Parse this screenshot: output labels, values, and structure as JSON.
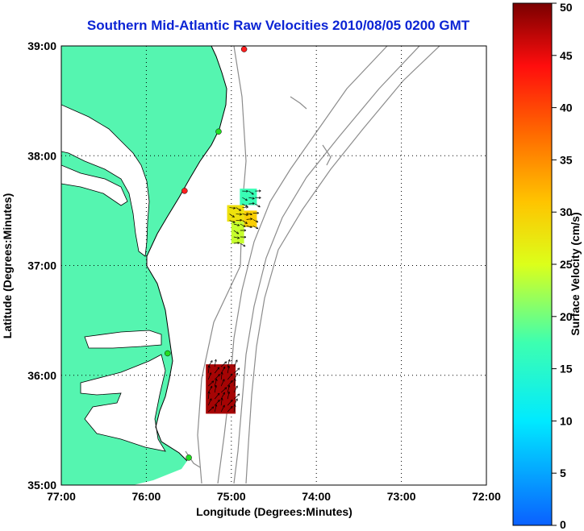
{
  "title": "Southern Mid-Atlantic Raw Velocities 2010/08/05 0200 GMT",
  "map": {
    "xlabel": "Longitude (Degrees:Minutes)",
    "ylabel": "Latitude (Degrees:Minutes)",
    "lon_ticks": [
      "77:00",
      "76:00",
      "75:00",
      "74:00",
      "73:00",
      "72:00"
    ],
    "lat_ticks": [
      "39:00",
      "38:00",
      "37:00",
      "36:00",
      "35:00"
    ],
    "lon_range": [
      -77,
      -72
    ],
    "lat_range": [
      35,
      39
    ],
    "land_color": "#55f5b0",
    "grid": "dotted",
    "stations": [
      {
        "lon": -74.85,
        "lat": 38.97,
        "color": "#ff2020"
      },
      {
        "lon": -75.15,
        "lat": 38.22,
        "color": "#22dd22"
      },
      {
        "lon": -75.55,
        "lat": 37.68,
        "color": "#ff2020"
      },
      {
        "lon": -75.75,
        "lat": 36.2,
        "color": "#22dd22"
      },
      {
        "lon": -75.5,
        "lat": 35.25,
        "color": "#22dd22"
      }
    ]
  },
  "colorbar": {
    "label": "Surface Velocity (cm/s)",
    "ticks": [
      "0",
      "5",
      "10",
      "15",
      "20",
      "25",
      "30",
      "35",
      "40",
      "45",
      "50"
    ],
    "min": 0,
    "max": 50
  },
  "chart_data": {
    "type": "heatmap",
    "title": "Southern Mid-Atlantic Raw Velocities 2010/08/05 0200 GMT",
    "xlabel": "Longitude (Degrees:Minutes)",
    "ylabel": "Latitude (Degrees:Minutes)",
    "xlim": [
      -77,
      -72
    ],
    "ylim": [
      35,
      39
    ],
    "colorscale": {
      "label": "Surface Velocity (cm/s)",
      "range": [
        0,
        50
      ]
    },
    "patches": [
      {
        "region": "north",
        "lon": [
          -74.9,
          -74.7
        ],
        "lat": [
          37.55,
          37.7
        ],
        "velocity": 17
      },
      {
        "region": "north",
        "lon": [
          -75.05,
          -74.85
        ],
        "lat": [
          37.4,
          37.55
        ],
        "velocity": 28
      },
      {
        "region": "north",
        "lon": [
          -75.0,
          -74.85
        ],
        "lat": [
          37.2,
          37.4
        ],
        "velocity": 24
      },
      {
        "region": "north",
        "lon": [
          -74.85,
          -74.7
        ],
        "lat": [
          37.35,
          37.5
        ],
        "velocity": 30
      },
      {
        "region": "south",
        "lon": [
          -75.3,
          -74.95
        ],
        "lat": [
          35.65,
          36.1
        ],
        "velocity": 48
      }
    ]
  }
}
